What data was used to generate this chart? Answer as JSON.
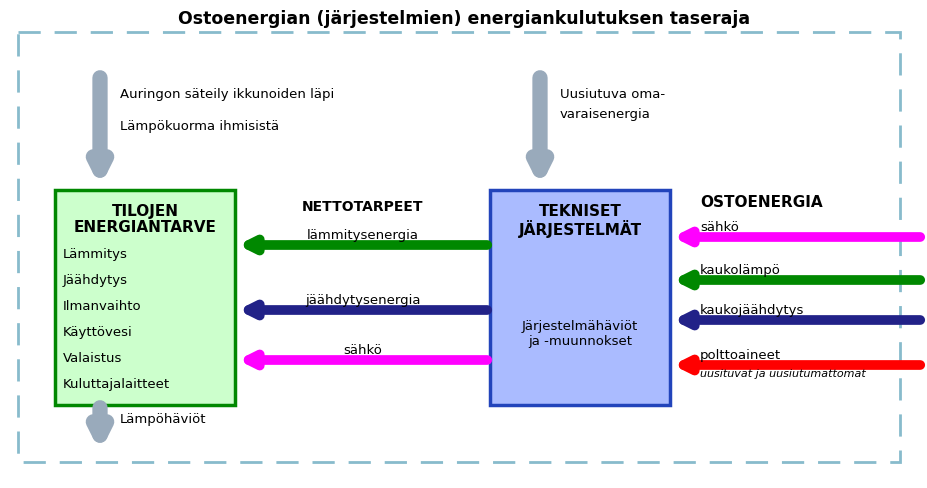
{
  "title": "Ostoenergian (järjestelmien) energiankulutuksen taseraja",
  "title_fontsize": 12.5,
  "title_fontweight": "bold",
  "fig_bg": "#ffffff",
  "dashed_border_color": "#88bbcc",
  "box1_label_line1": "TILOJEN",
  "box1_label_line2": "ENERGIANTARVE",
  "box1_items": [
    "Lämmitys",
    "Jäähdytys",
    "Ilmanvaihto",
    "Käyttövesi",
    "Valaistus",
    "Kuluttajalaitteet"
  ],
  "box1_bg": "#ccffcc",
  "box1_border": "#008800",
  "box2_label_line1": "TEKNISET",
  "box2_label_line2": "JÄRJESTELMÄT",
  "box2_sub": "Järjestelmähäviöt\nja -muunnokset",
  "box2_bg": "#aabbff",
  "box2_border": "#2244bb",
  "nettotarpeet_label": "NETTOTARPEET",
  "arrow_labels": [
    "lämmitysenergia",
    "jäähdytysenergia",
    "sähkö"
  ],
  "ostoenergia_label": "OSTOENERGIA",
  "ostoenergia_items": [
    "sähkö",
    "kaukolämpö",
    "kaukojäähdytys",
    "polttoaineet"
  ],
  "ostoenergia_sub": "uusituvat ja uusiutumattomat",
  "arrow_solar_label1": "Auringon säteily ikkunoiden läpi",
  "arrow_solar_label2": "Lämpökuorma ihmisistä",
  "arrow_renewable_label1": "Uusiutuva oma-",
  "arrow_renewable_label2": "varaisenergia",
  "arrow_heat_loss_label": "Lämpöhäviöt",
  "color_magenta": "#ff00ff",
  "color_green": "#008800",
  "color_blue_dark": "#222288",
  "color_red": "#ff0000",
  "color_gray_arrow": "#99aabb"
}
